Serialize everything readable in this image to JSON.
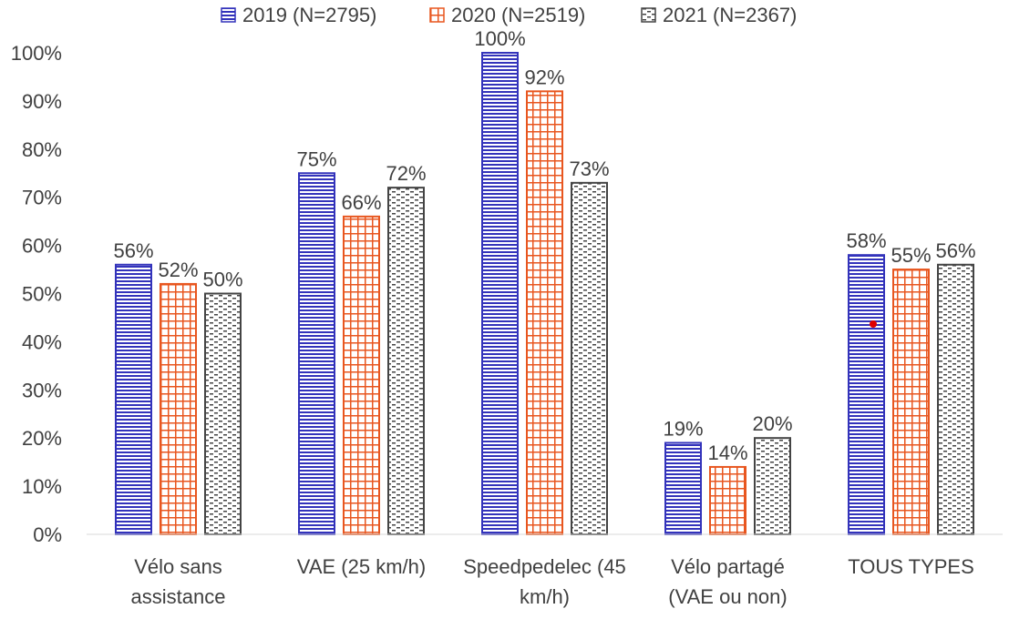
{
  "chart_data": {
    "type": "bar",
    "categories": [
      [
        "Vélo sans",
        "assistance"
      ],
      [
        "VAE (25 km/h)"
      ],
      [
        "Speedpedelec (45",
        "km/h)"
      ],
      [
        "Vélo partagé",
        "(VAE ou non)"
      ],
      [
        "TOUS TYPES"
      ]
    ],
    "series": [
      {
        "name": "2019 (N=2795)",
        "values": [
          56,
          75,
          100,
          19,
          58
        ],
        "labels": [
          "56%",
          "75%",
          "100%",
          "19%",
          "58%"
        ],
        "color": "#3333bb",
        "pattern": "horizontal-lines"
      },
      {
        "name": "2020 (N=2519)",
        "values": [
          52,
          66,
          92,
          14,
          55
        ],
        "labels": [
          "52%",
          "66%",
          "92%",
          "14%",
          "55%"
        ],
        "color": "#e8561f",
        "pattern": "grid"
      },
      {
        "name": "2021 (N=2367)",
        "values": [
          50,
          72,
          73,
          20,
          56
        ],
        "labels": [
          "50%",
          "72%",
          "73%",
          "20%",
          "56%"
        ],
        "color": "#444444",
        "pattern": "dashes"
      }
    ],
    "ylim": [
      0,
      100
    ],
    "y_ticks": [
      "0%",
      "10%",
      "20%",
      "30%",
      "40%",
      "50%",
      "60%",
      "70%",
      "80%",
      "90%",
      "100%"
    ],
    "grid": false,
    "legend_position": "top"
  }
}
